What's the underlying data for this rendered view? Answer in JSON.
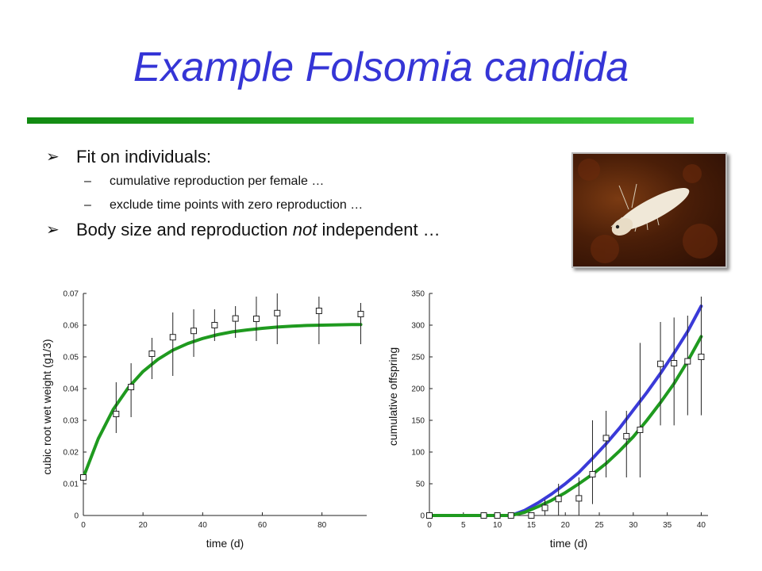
{
  "slide": {
    "title": "Example Folsomia candida",
    "bullets": [
      {
        "text": "Fit on individuals:",
        "sub": [
          "cumulative reproduction per female …",
          "exclude time points with zero reproduction …"
        ]
      },
      {
        "pre": "Body size and reproduction ",
        "em": "not",
        "post": " independent …"
      }
    ],
    "colors": {
      "title": "#3535d6",
      "rule": "#22aa22",
      "fit_green": "#1f9a1f",
      "fit_blue": "#3a3ad8"
    },
    "photo_icon": "springtail-photo"
  },
  "chart_data": [
    {
      "type": "scatter",
      "xlabel": "time (d)",
      "ylabel": "cubic root wet weight (g1/3)",
      "xlim": [
        0,
        95
      ],
      "ylim": [
        0,
        0.07
      ],
      "xticks": [
        0,
        20,
        40,
        60,
        80
      ],
      "yticks": [
        0,
        0.01,
        0.02,
        0.03,
        0.04,
        0.05,
        0.06,
        0.07
      ],
      "ytick_labels": [
        "0",
        "0.01",
        "0.02",
        "0.03",
        "0.04",
        "0.05",
        "0.06",
        "0.07"
      ],
      "series": [
        {
          "kind": "points",
          "x": [
            0,
            11,
            16,
            23,
            30,
            37,
            44,
            51,
            58,
            65,
            79,
            93
          ],
          "y": [
            0.012,
            0.032,
            0.0405,
            0.051,
            0.0562,
            0.0582,
            0.06,
            0.0621,
            0.062,
            0.0638,
            0.0645,
            0.0635
          ],
          "err_lo": [
            0.012,
            0.026,
            0.031,
            0.043,
            0.044,
            0.05,
            0.055,
            0.056,
            0.055,
            0.054,
            0.054,
            0.054
          ],
          "err_hi": [
            0.012,
            0.042,
            0.048,
            0.056,
            0.064,
            0.065,
            0.065,
            0.066,
            0.069,
            0.07,
            0.069,
            0.067
          ]
        },
        {
          "kind": "line",
          "color": "#1f9a1f",
          "x": [
            0,
            5,
            10,
            15,
            20,
            25,
            30,
            35,
            40,
            45,
            50,
            55,
            60,
            65,
            70,
            75,
            80,
            85,
            90,
            93
          ],
          "y": [
            0.012,
            0.0242,
            0.0334,
            0.0402,
            0.0454,
            0.0492,
            0.0521,
            0.0542,
            0.0558,
            0.057,
            0.0579,
            0.0585,
            0.059,
            0.0594,
            0.0597,
            0.0599,
            0.06,
            0.0601,
            0.0602,
            0.0602
          ]
        }
      ]
    },
    {
      "type": "scatter",
      "xlabel": "time (d)",
      "ylabel": "cumulative offspring",
      "xlim": [
        0,
        41
      ],
      "ylim": [
        0,
        350
      ],
      "xticks": [
        0,
        5,
        10,
        15,
        20,
        25,
        30,
        35,
        40
      ],
      "yticks": [
        0,
        50,
        100,
        150,
        200,
        250,
        300,
        350
      ],
      "ytick_labels": [
        "0",
        "50",
        "100",
        "150",
        "200",
        "250",
        "300",
        "350"
      ],
      "series": [
        {
          "kind": "points",
          "x": [
            0,
            8,
            10,
            12,
            15,
            17,
            19,
            22,
            24,
            26,
            29,
            31,
            34,
            36,
            38,
            40
          ],
          "y": [
            0,
            0,
            0,
            0,
            0,
            12,
            26,
            27,
            65,
            122,
            125,
            135,
            239,
            240,
            243,
            250
          ],
          "err_lo": [
            0,
            0,
            0,
            0,
            0,
            0,
            0,
            0,
            18,
            60,
            60,
            60,
            142,
            142,
            158,
            158
          ],
          "err_hi": [
            0,
            0,
            0,
            0,
            0,
            25,
            50,
            60,
            150,
            165,
            165,
            272,
            305,
            312,
            315,
            345
          ]
        },
        {
          "kind": "line",
          "color": "#3a3ad8",
          "x": [
            0,
            12,
            14,
            16,
            18,
            20,
            22,
            24,
            26,
            28,
            30,
            32,
            34,
            36,
            38,
            40
          ],
          "y": [
            0,
            0,
            8,
            20,
            34,
            50,
            68,
            90,
            113,
            138,
            166,
            194,
            224,
            256,
            290,
            330
          ]
        },
        {
          "kind": "line",
          "color": "#1f9a1f",
          "x": [
            0,
            12,
            14,
            16,
            18,
            20,
            22,
            24,
            26,
            28,
            30,
            32,
            34,
            36,
            38,
            40
          ],
          "y": [
            0,
            0,
            5,
            14,
            24,
            36,
            50,
            65,
            82,
            102,
            124,
            150,
            178,
            208,
            243,
            282
          ]
        }
      ]
    }
  ]
}
